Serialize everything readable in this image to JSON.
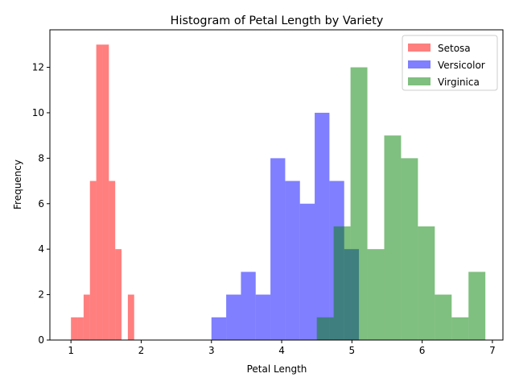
{
  "chart_data": {
    "type": "bar",
    "subtype": "histogram-overlay",
    "title": "Histogram of Petal Length by Variety",
    "xlabel": "Petal Length",
    "ylabel": "Frequency",
    "xlim": [
      0.7,
      7.15
    ],
    "ylim": [
      0,
      13.65
    ],
    "xticks": [
      1,
      2,
      3,
      4,
      5,
      6,
      7
    ],
    "yticks": [
      0,
      2,
      4,
      6,
      8,
      10,
      12
    ],
    "grid": false,
    "legend_position": "top-right",
    "series": [
      {
        "name": "Setosa",
        "color": "#ff0000",
        "opacity": 0.5,
        "bins": [
          {
            "x0": 1.0,
            "x1": 1.09,
            "count": 1
          },
          {
            "x0": 1.09,
            "x1": 1.18,
            "count": 1
          },
          {
            "x0": 1.18,
            "x1": 1.27,
            "count": 2
          },
          {
            "x0": 1.27,
            "x1": 1.36,
            "count": 7
          },
          {
            "x0": 1.36,
            "x1": 1.45,
            "count": 13
          },
          {
            "x0": 1.45,
            "x1": 1.54,
            "count": 13
          },
          {
            "x0": 1.54,
            "x1": 1.63,
            "count": 7
          },
          {
            "x0": 1.63,
            "x1": 1.72,
            "count": 4
          },
          {
            "x0": 1.72,
            "x1": 1.81,
            "count": 0
          },
          {
            "x0": 1.81,
            "x1": 1.9,
            "count": 2
          }
        ]
      },
      {
        "name": "Versicolor",
        "color": "#0000ff",
        "opacity": 0.5,
        "bins": [
          {
            "x0": 3.0,
            "x1": 3.21,
            "count": 1
          },
          {
            "x0": 3.21,
            "x1": 3.42,
            "count": 2
          },
          {
            "x0": 3.42,
            "x1": 3.63,
            "count": 3
          },
          {
            "x0": 3.63,
            "x1": 3.84,
            "count": 2
          },
          {
            "x0": 3.84,
            "x1": 4.05,
            "count": 8
          },
          {
            "x0": 4.05,
            "x1": 4.26,
            "count": 7
          },
          {
            "x0": 4.26,
            "x1": 4.47,
            "count": 6
          },
          {
            "x0": 4.47,
            "x1": 4.68,
            "count": 10
          },
          {
            "x0": 4.68,
            "x1": 4.89,
            "count": 7
          },
          {
            "x0": 4.89,
            "x1": 5.1,
            "count": 4
          }
        ]
      },
      {
        "name": "Virginica",
        "color": "#008000",
        "opacity": 0.5,
        "bins": [
          {
            "x0": 4.5,
            "x1": 4.74,
            "count": 1
          },
          {
            "x0": 4.74,
            "x1": 4.98,
            "count": 5
          },
          {
            "x0": 4.98,
            "x1": 5.22,
            "count": 12
          },
          {
            "x0": 5.22,
            "x1": 5.46,
            "count": 4
          },
          {
            "x0": 5.46,
            "x1": 5.7,
            "count": 9
          },
          {
            "x0": 5.7,
            "x1": 5.94,
            "count": 8
          },
          {
            "x0": 5.94,
            "x1": 6.18,
            "count": 5
          },
          {
            "x0": 6.18,
            "x1": 6.42,
            "count": 2
          },
          {
            "x0": 6.42,
            "x1": 6.66,
            "count": 1
          },
          {
            "x0": 6.66,
            "x1": 6.9,
            "count": 3
          }
        ]
      }
    ]
  }
}
